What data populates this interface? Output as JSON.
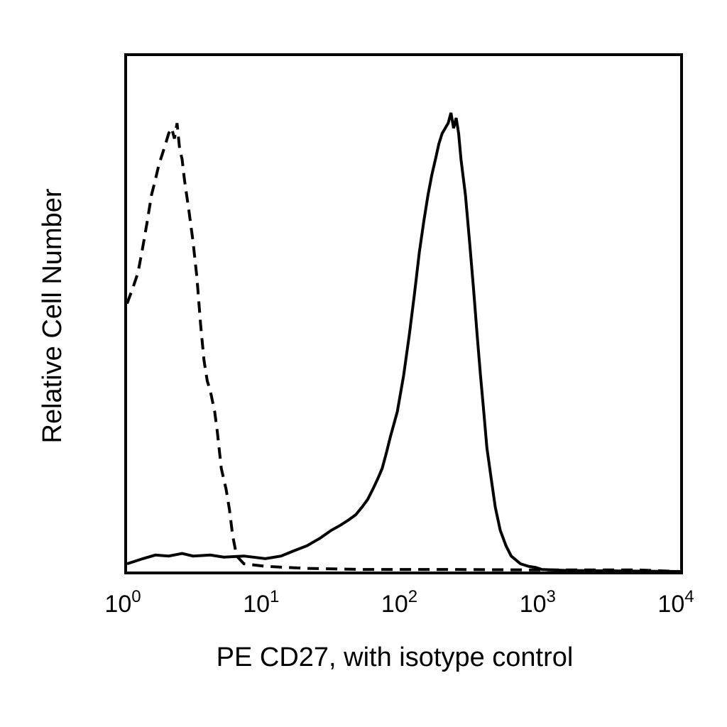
{
  "chart_data": {
    "type": "line",
    "xlabel": "PE CD27, with isotype control",
    "ylabel": "Relative Cell Number",
    "x_scale": "log",
    "xlim": [
      1,
      10000
    ],
    "ylim": [
      0,
      100
    ],
    "grid": false,
    "legend": "none",
    "xtick_labels": [
      {
        "base": "10",
        "exp": "0",
        "value": 1
      },
      {
        "base": "10",
        "exp": "1",
        "value": 10
      },
      {
        "base": "10",
        "exp": "2",
        "value": 100
      },
      {
        "base": "10",
        "exp": "3",
        "value": 1000
      },
      {
        "base": "10",
        "exp": "4",
        "value": 10000
      }
    ],
    "series": [
      {
        "style": "dashed",
        "color": "#000000",
        "points": [
          [
            1.0,
            52
          ],
          [
            1.1,
            55
          ],
          [
            1.2,
            58
          ],
          [
            1.3,
            63
          ],
          [
            1.4,
            68
          ],
          [
            1.5,
            73
          ],
          [
            1.6,
            76
          ],
          [
            1.7,
            79
          ],
          [
            1.8,
            81
          ],
          [
            1.9,
            83
          ],
          [
            2.0,
            85
          ],
          [
            2.1,
            86
          ],
          [
            2.2,
            84
          ],
          [
            2.3,
            87
          ],
          [
            2.4,
            82
          ],
          [
            2.5,
            80
          ],
          [
            2.6,
            76
          ],
          [
            2.8,
            70
          ],
          [
            3.0,
            64
          ],
          [
            3.2,
            57
          ],
          [
            3.4,
            48
          ],
          [
            3.6,
            41
          ],
          [
            3.8,
            37
          ],
          [
            4.0,
            35
          ],
          [
            4.3,
            31
          ],
          [
            4.5,
            27
          ],
          [
            4.8,
            20
          ],
          [
            5.2,
            16
          ],
          [
            5.5,
            12
          ],
          [
            5.8,
            7
          ],
          [
            6.2,
            3
          ],
          [
            7.0,
            1.5
          ],
          [
            10.0,
            1
          ],
          [
            20.0,
            0.6
          ],
          [
            50.0,
            0.4
          ],
          [
            200.0,
            0.4
          ],
          [
            1000.0,
            0.3
          ],
          [
            5000.0,
            0.3
          ],
          [
            10000.0,
            0
          ]
        ]
      },
      {
        "style": "solid",
        "color": "#000000",
        "points": [
          [
            1.0,
            1.5
          ],
          [
            1.3,
            2.5
          ],
          [
            1.6,
            3.2
          ],
          [
            2.0,
            3.0
          ],
          [
            2.5,
            3.5
          ],
          [
            3.0,
            3.0
          ],
          [
            4.0,
            3.2
          ],
          [
            5.0,
            2.8
          ],
          [
            7.0,
            3.0
          ],
          [
            10.0,
            2.5
          ],
          [
            13.0,
            3.0
          ],
          [
            16.0,
            4.0
          ],
          [
            20.0,
            5.0
          ],
          [
            25.0,
            6.5
          ],
          [
            30.0,
            8.0
          ],
          [
            35.0,
            9.0
          ],
          [
            40.0,
            10.0
          ],
          [
            45.0,
            11.0
          ],
          [
            50.0,
            12.5
          ],
          [
            55.0,
            14.0
          ],
          [
            60.0,
            16.0
          ],
          [
            65.0,
            18.0
          ],
          [
            70.0,
            20.0
          ],
          [
            75.0,
            23.0
          ],
          [
            80.0,
            26.0
          ],
          [
            90.0,
            31.0
          ],
          [
            100.0,
            38.0
          ],
          [
            110.0,
            46.0
          ],
          [
            120.0,
            54.0
          ],
          [
            130.0,
            62.0
          ],
          [
            140.0,
            68.0
          ],
          [
            150.0,
            73.0
          ],
          [
            160.0,
            77.0
          ],
          [
            170.0,
            80.0
          ],
          [
            180.0,
            83.0
          ],
          [
            190.0,
            85.0
          ],
          [
            200.0,
            86.0
          ],
          [
            210.0,
            87.0
          ],
          [
            220.0,
            89.0
          ],
          [
            230.0,
            86.0
          ],
          [
            240.0,
            88.0
          ],
          [
            250.0,
            85.0
          ],
          [
            260.0,
            80.0
          ],
          [
            280.0,
            73.0
          ],
          [
            300.0,
            64.0
          ],
          [
            320.0,
            55.0
          ],
          [
            340.0,
            46.0
          ],
          [
            360.0,
            38.0
          ],
          [
            380.0,
            31.0
          ],
          [
            400.0,
            24.0
          ],
          [
            430.0,
            18.0
          ],
          [
            460.0,
            12.5
          ],
          [
            500.0,
            8.0
          ],
          [
            550.0,
            5.0
          ],
          [
            600.0,
            3.0
          ],
          [
            700.0,
            1.5
          ],
          [
            800.0,
            1.0
          ],
          [
            900.0,
            0.8
          ],
          [
            1000.0,
            0.4
          ],
          [
            1500.0,
            0.2
          ],
          [
            10000.0,
            0
          ]
        ]
      }
    ]
  }
}
